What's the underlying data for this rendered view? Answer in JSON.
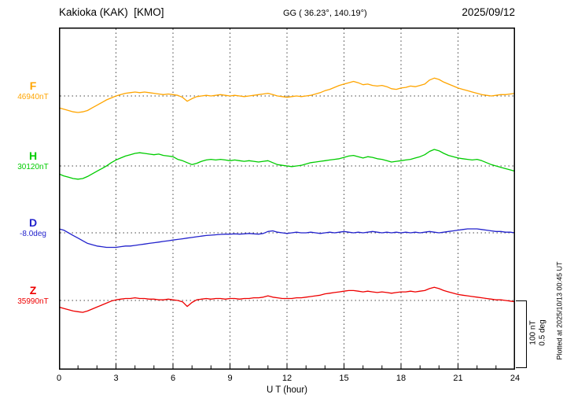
{
  "header": {
    "station": "Kakioka (KAK)  [KMO]",
    "coordinates": "GG ( 36.23°, 140.19°)",
    "date": "2025/09/12"
  },
  "axis": {
    "xlabel": "U T (hour)",
    "ticks": [
      0,
      3,
      6,
      9,
      12,
      15,
      18,
      21,
      24
    ]
  },
  "scalebar": {
    "label_nt": "100 nT",
    "label_deg": "0.5 deg"
  },
  "footer_rotated": "Plotted at 2025/10/13 00:45 UT",
  "colors": {
    "frame": "#000000",
    "grid": "#444444",
    "f_trace": "#FFA500",
    "h_trace": "#00CC00",
    "d_trace": "#2222CC",
    "z_trace": "#EE0000"
  },
  "chart_data": {
    "type": "line",
    "title": "Kakioka (KAK) [KMO] magnetogram 2025/09/12",
    "xlabel": "U T (hour)",
    "x_range": [
      0,
      24
    ],
    "x_step_hours": 0.25,
    "x_ticks": [
      0,
      3,
      6,
      9,
      12,
      15,
      18,
      21,
      24
    ],
    "grid": "dotted vertical every 3h, dotted horizontal baseline per trace",
    "scale_bar": {
      "nT": 100,
      "deg": 0.5
    },
    "series": [
      {
        "name": "F",
        "baseline_label": "46940nT",
        "baseline_value": 46940,
        "unit": "nT",
        "color": "#FFA500",
        "offsets": [
          -18,
          -20,
          -22,
          -24,
          -25,
          -24,
          -22,
          -18,
          -14,
          -10,
          -6,
          -3,
          0,
          2,
          4,
          5,
          6,
          5,
          6,
          5,
          4,
          3,
          2,
          3,
          2,
          1,
          -2,
          -8,
          -4,
          -1,
          0,
          1,
          0,
          1,
          2,
          1,
          0,
          1,
          0,
          -1,
          0,
          1,
          2,
          3,
          4,
          2,
          0,
          -1,
          -2,
          -1,
          0,
          -1,
          0,
          1,
          3,
          5,
          8,
          10,
          13,
          16,
          18,
          20,
          22,
          20,
          17,
          18,
          16,
          15,
          16,
          14,
          11,
          10,
          12,
          13,
          15,
          14,
          16,
          18,
          24,
          27,
          25,
          21,
          18,
          15,
          12,
          10,
          8,
          6,
          4,
          2,
          1,
          0,
          1,
          2,
          2,
          3,
          4
        ]
      },
      {
        "name": "H",
        "baseline_label": "30120nT",
        "baseline_value": 30120,
        "unit": "nT",
        "color": "#00CC00",
        "offsets": [
          -12,
          -15,
          -17,
          -19,
          -20,
          -19,
          -16,
          -12,
          -8,
          -4,
          0,
          5,
          9,
          12,
          15,
          17,
          19,
          20,
          19,
          18,
          17,
          18,
          16,
          15,
          14,
          10,
          8,
          5,
          2,
          4,
          7,
          9,
          10,
          9,
          10,
          9,
          8,
          9,
          8,
          7,
          8,
          7,
          6,
          7,
          8,
          5,
          2,
          1,
          0,
          -1,
          0,
          1,
          3,
          5,
          6,
          7,
          8,
          9,
          10,
          11,
          13,
          15,
          16,
          14,
          12,
          14,
          13,
          11,
          10,
          8,
          6,
          7,
          8,
          9,
          10,
          12,
          14,
          17,
          22,
          25,
          23,
          19,
          16,
          14,
          12,
          11,
          10,
          9,
          10,
          8,
          5,
          2,
          0,
          -2,
          -4,
          -6,
          -8
        ]
      },
      {
        "name": "D",
        "baseline_label": "-8.0deg",
        "baseline_value": -8.0,
        "unit": "deg",
        "color": "#2222CC",
        "offsets": [
          0.03,
          0.02,
          0.0,
          -0.02,
          -0.04,
          -0.06,
          -0.08,
          -0.09,
          -0.1,
          -0.105,
          -0.11,
          -0.11,
          -0.11,
          -0.105,
          -0.1,
          -0.1,
          -0.095,
          -0.09,
          -0.085,
          -0.08,
          -0.075,
          -0.07,
          -0.065,
          -0.06,
          -0.055,
          -0.05,
          -0.045,
          -0.04,
          -0.035,
          -0.03,
          -0.025,
          -0.02,
          -0.018,
          -0.015,
          -0.012,
          -0.01,
          -0.01,
          -0.008,
          -0.01,
          -0.008,
          -0.005,
          -0.008,
          -0.01,
          -0.005,
          0.01,
          0.015,
          0.005,
          0.0,
          -0.005,
          0.0,
          0.005,
          0.0,
          0.0,
          0.005,
          0.0,
          -0.005,
          0.0,
          0.005,
          0.0,
          0.005,
          0.01,
          0.005,
          0.0,
          0.005,
          0.0,
          0.005,
          0.01,
          0.005,
          0.0,
          0.005,
          0.0,
          0.005,
          0.0,
          0.005,
          0.0,
          0.005,
          0.0,
          0.005,
          0.01,
          0.005,
          0.0,
          0.005,
          0.01,
          0.015,
          0.02,
          0.025,
          0.03,
          0.03,
          0.03,
          0.025,
          0.02,
          0.015,
          0.01,
          0.01,
          0.005,
          0.005,
          0.0
        ]
      },
      {
        "name": "Z",
        "baseline_label": "35990nT",
        "baseline_value": 35990,
        "unit": "nT",
        "color": "#EE0000",
        "offsets": [
          -10,
          -12,
          -14,
          -16,
          -17,
          -18,
          -16,
          -13,
          -10,
          -7,
          -4,
          -1,
          1,
          2,
          3,
          3,
          4,
          3,
          3,
          2,
          2,
          1,
          1,
          2,
          1,
          0,
          -2,
          -9,
          -3,
          1,
          2,
          3,
          2,
          3,
          3,
          2,
          3,
          3,
          2,
          3,
          3,
          4,
          4,
          5,
          7,
          5,
          4,
          3,
          3,
          3,
          4,
          4,
          5,
          6,
          7,
          8,
          10,
          11,
          12,
          13,
          14,
          15,
          15,
          14,
          13,
          14,
          13,
          12,
          13,
          12,
          11,
          12,
          13,
          13,
          14,
          13,
          14,
          15,
          18,
          20,
          18,
          15,
          13,
          11,
          9,
          8,
          7,
          6,
          5,
          4,
          3,
          2,
          1,
          1,
          0,
          -1,
          -2
        ]
      }
    ]
  }
}
